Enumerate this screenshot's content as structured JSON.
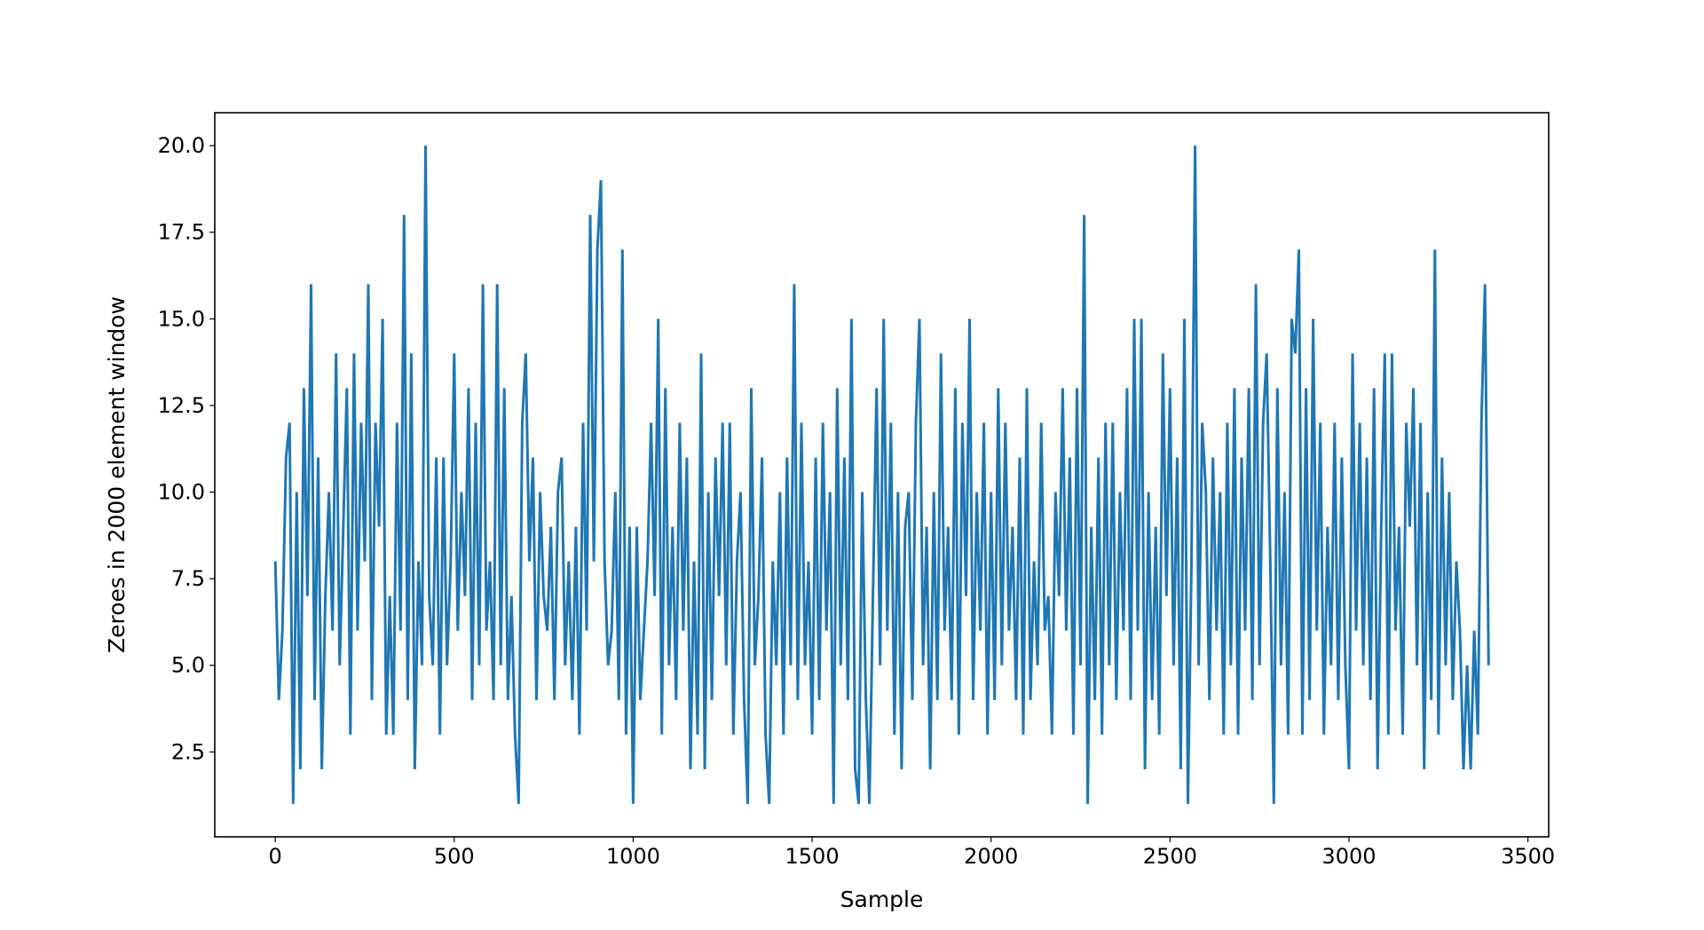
{
  "chart_data": {
    "type": "line",
    "title": "",
    "xlabel": "Sample",
    "ylabel": "Zeroes in 2000 element window",
    "xlim": [
      -169,
      3558
    ],
    "ylim": [
      0.05,
      20.95
    ],
    "xticks": [
      0,
      500,
      1000,
      1500,
      2000,
      2500,
      3000,
      3500
    ],
    "xtick_labels": [
      "0",
      "500",
      "1000",
      "1500",
      "2000",
      "2500",
      "3000",
      "3500"
    ],
    "yticks": [
      2.5,
      5.0,
      7.5,
      10.0,
      12.5,
      15.0,
      17.5,
      20.0
    ],
    "ytick_labels": [
      "2.5",
      "5.0",
      "7.5",
      "10.0",
      "12.5",
      "15.0",
      "17.5",
      "20.0"
    ],
    "grid": false,
    "legend": "none",
    "series": [
      {
        "color": "#1f77b4",
        "x_start": 0,
        "x_step": 10,
        "values": [
          8,
          4,
          6,
          11,
          12,
          1,
          10,
          2,
          13,
          7,
          16,
          4,
          11,
          2,
          7,
          10,
          6,
          14,
          5,
          9,
          13,
          3,
          14,
          6,
          12,
          8,
          16,
          4,
          12,
          9,
          15,
          3,
          7,
          3,
          12,
          6,
          18,
          4,
          14,
          2,
          8,
          5,
          20,
          7,
          5,
          11,
          3,
          11,
          5,
          8,
          14,
          6,
          10,
          7,
          13,
          4,
          12,
          5,
          16,
          6,
          8,
          4,
          16,
          5,
          13,
          4,
          7,
          3,
          1,
          12,
          14,
          8,
          11,
          4,
          10,
          7,
          6,
          9,
          4,
          10,
          11,
          5,
          8,
          4,
          9,
          3,
          12,
          6,
          18,
          8,
          17,
          19,
          8,
          5,
          6,
          10,
          4,
          17,
          3,
          9,
          1,
          9,
          4,
          6,
          8,
          12,
          7,
          15,
          3,
          13,
          5,
          9,
          4,
          12,
          6,
          11,
          2,
          8,
          3,
          14,
          2,
          10,
          4,
          11,
          7,
          12,
          5,
          12,
          3,
          8,
          10,
          4,
          1,
          13,
          5,
          7,
          11,
          3,
          1,
          8,
          5,
          10,
          3,
          11,
          5,
          16,
          4,
          12,
          5,
          8,
          3,
          11,
          4,
          12,
          6,
          10,
          1,
          13,
          5,
          11,
          4,
          15,
          2,
          1,
          10,
          4,
          1,
          7,
          13,
          5,
          15,
          6,
          12,
          3,
          10,
          2,
          9,
          10,
          4,
          12,
          15,
          5,
          9,
          2,
          10,
          4,
          14,
          6,
          9,
          4,
          13,
          3,
          12,
          7,
          15,
          4,
          10,
          6,
          12,
          3,
          10,
          4,
          13,
          5,
          12,
          6,
          9,
          4,
          11,
          3,
          13,
          4,
          8,
          5,
          12,
          6,
          7,
          3,
          10,
          7,
          13,
          6,
          11,
          3,
          13,
          5,
          18,
          1,
          9,
          4,
          11,
          3,
          12,
          5,
          12,
          4,
          10,
          6,
          13,
          4,
          15,
          6,
          15,
          2,
          10,
          4,
          9,
          3,
          14,
          7,
          13,
          5,
          11,
          2,
          15,
          1,
          8,
          20,
          5,
          12,
          10,
          4,
          11,
          6,
          10,
          3,
          12,
          5,
          13,
          3,
          11,
          6,
          13,
          4,
          16,
          5,
          12,
          14,
          8,
          1,
          13,
          5,
          10,
          3,
          15,
          14,
          17,
          3,
          13,
          4,
          15,
          6,
          12,
          3,
          9,
          5,
          12,
          4,
          11,
          5,
          2,
          14,
          6,
          12,
          5,
          11,
          4,
          13,
          2,
          9,
          14,
          3,
          14,
          6,
          9,
          3,
          12,
          9,
          13,
          5,
          12,
          2,
          10,
          4,
          17,
          3,
          11,
          5,
          10,
          4,
          8,
          6,
          2,
          5,
          2,
          6,
          3,
          12,
          16,
          5
        ]
      }
    ]
  }
}
